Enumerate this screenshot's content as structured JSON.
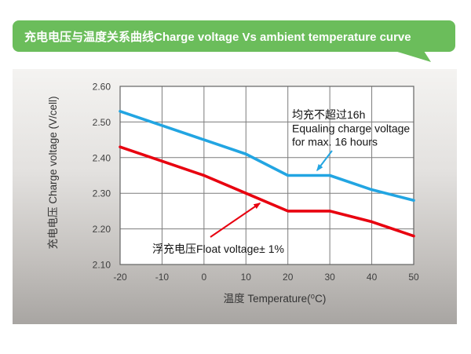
{
  "banner": {
    "title": "充电电压与温度关系曲线Charge voltage Vs ambient temperature curve",
    "color": "#6bbd5b"
  },
  "chart_data": {
    "type": "line",
    "title": "充电电压与温度关系曲线 Charge voltage Vs ambient temperature curve",
    "xlabel": "温度 Temperature(⁰C)",
    "ylabel": "充电电压 Charge voltage (V/cell)",
    "x": [
      -20,
      -10,
      0,
      10,
      20,
      30,
      40,
      50
    ],
    "xlim": [
      -20,
      50
    ],
    "ylim": [
      2.1,
      2.6
    ],
    "xticks": [
      "-20",
      "-10",
      "0",
      "10",
      "20",
      "30",
      "40",
      "50"
    ],
    "yticks": [
      "2.10",
      "2.20",
      "2.30",
      "2.40",
      "2.50",
      "2.60"
    ],
    "grid": true,
    "legend_position": "none",
    "series": [
      {
        "name": "equalizing-charge-voltage",
        "label": "均充不超过16h Equaling charge voltage for max. 16 hours",
        "color": "#22a5e2",
        "values": [
          2.53,
          2.49,
          2.45,
          2.41,
          2.35,
          2.35,
          2.31,
          2.28
        ]
      },
      {
        "name": "float-voltage",
        "label": "浮充电压Float voltage± 1%",
        "color": "#e8000f",
        "values": [
          2.43,
          2.39,
          2.35,
          2.3,
          2.25,
          2.25,
          2.22,
          2.18
        ]
      }
    ],
    "annotations": [
      {
        "id": "equalize-note",
        "lines": [
          "均充不超过16h",
          "Equaling charge voltage",
          "for max. 16 hours"
        ],
        "arrow_color": "#22a5e2"
      },
      {
        "id": "float-note",
        "lines": [
          "浮充电压Float voltage± 1%"
        ],
        "arrow_color": "#e8000f"
      }
    ],
    "plot_colors": {
      "plot_background": "#ffffff",
      "grid_line": "#7c7c7c",
      "plot_border": "#646464"
    }
  }
}
